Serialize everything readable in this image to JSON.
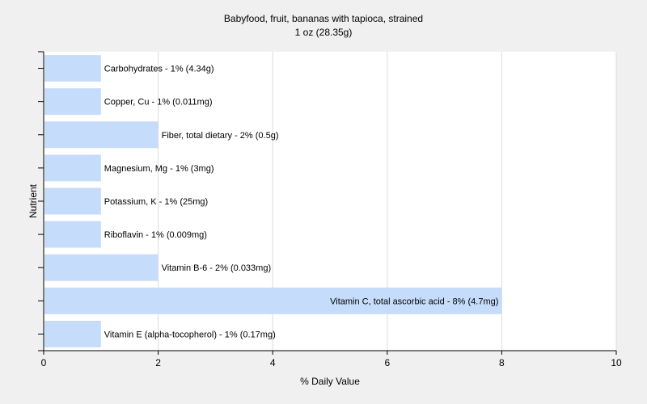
{
  "chart_data": {
    "type": "bar",
    "orientation": "horizontal",
    "title": "Babyfood, fruit, bananas with tapioca, strained",
    "subtitle": "1 oz (28.35g)",
    "xlabel": "% Daily Value",
    "ylabel": "Nutrient",
    "xlim": [
      0,
      10
    ],
    "xticks": [
      "0",
      "2",
      "4",
      "6",
      "8",
      "10"
    ],
    "grid": true,
    "bar_color": "#c6dcfb",
    "background_color": "#f0f0f0",
    "categories": [
      "Carbohydrates",
      "Copper, Cu",
      "Fiber, total dietary",
      "Magnesium, Mg",
      "Potassium, K",
      "Riboflavin",
      "Vitamin B-6",
      "Vitamin C, total ascorbic acid",
      "Vitamin E (alpha-tocopherol)"
    ],
    "values": [
      1,
      1,
      2,
      1,
      1,
      1,
      2,
      8,
      1
    ],
    "labels": [
      "Carbohydrates - 1% (4.34g)",
      "Copper, Cu - 1% (0.011mg)",
      "Fiber, total dietary - 2% (0.5g)",
      "Magnesium, Mg - 1% (3mg)",
      "Potassium, K - 1% (25mg)",
      "Riboflavin - 1% (0.009mg)",
      "Vitamin B-6 - 2% (0.033mg)",
      "Vitamin C, total ascorbic acid - 8% (4.7mg)",
      "Vitamin E (alpha-tocopherol) - 1% (0.17mg)"
    ]
  }
}
